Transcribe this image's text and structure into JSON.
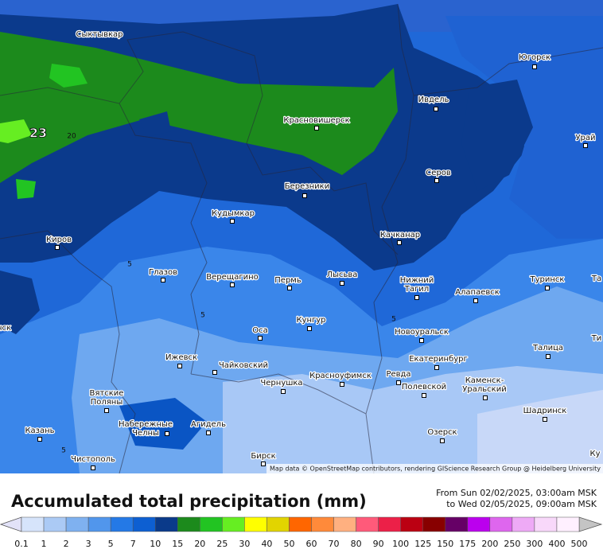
{
  "cities": [
    {
      "lines": [
        "Сыктывкар"
      ]
    },
    {
      "lines": [
        "Югорск"
      ]
    },
    {
      "lines": [
        "Ивдель"
      ]
    },
    {
      "lines": [
        "Красновишерск"
      ]
    },
    {
      "lines": [
        "Урай"
      ]
    },
    {
      "lines": [
        "Серов"
      ]
    },
    {
      "lines": [
        "Березники"
      ]
    },
    {
      "lines": [
        "Кудымкар"
      ]
    },
    {
      "lines": [
        "Качканар"
      ]
    },
    {
      "lines": [
        "Киров"
      ]
    },
    {
      "lines": [
        "Глазов"
      ]
    },
    {
      "lines": [
        "Верещагино"
      ]
    },
    {
      "lines": [
        "Пермь"
      ]
    },
    {
      "lines": [
        "Лысьва"
      ]
    },
    {
      "lines": [
        "Нижний",
        "Тагил"
      ]
    },
    {
      "lines": [
        "Туринск"
      ]
    },
    {
      "lines": [
        "Алапаевск"
      ]
    },
    {
      "lines": [
        "Кунгур"
      ]
    },
    {
      "lines": [
        "Оса"
      ]
    },
    {
      "lines": [
        "Новоуральск"
      ]
    },
    {
      "lines": [
        "Талица"
      ]
    },
    {
      "lines": [
        "Ижевск"
      ]
    },
    {
      "lines": [
        "Екатеринбург"
      ]
    },
    {
      "lines": [
        "Чайковский"
      ]
    },
    {
      "lines": [
        "Ревда"
      ]
    },
    {
      "lines": [
        "Красноуфимск"
      ]
    },
    {
      "lines": [
        "Чернушка"
      ]
    },
    {
      "lines": [
        "Каменск-",
        "Уральский"
      ]
    },
    {
      "lines": [
        "Полевской"
      ]
    },
    {
      "lines": [
        "Вятские",
        "Поляны"
      ]
    },
    {
      "lines": [
        "Набережные",
        "Челны"
      ]
    },
    {
      "lines": [
        "Агидель"
      ]
    },
    {
      "lines": [
        "Шадринск"
      ]
    },
    {
      "lines": [
        "Казань"
      ]
    },
    {
      "lines": [
        "Озерск"
      ]
    },
    {
      "lines": [
        "Чистополь"
      ]
    },
    {
      "lines": [
        "Бирск"
      ]
    },
    {
      "lines": [
        "Та"
      ]
    },
    {
      "lines": [
        "Ти"
      ]
    },
    {
      "lines": [
        "Ку"
      ]
    },
    {
      "lines": [
        "нск"
      ]
    }
  ],
  "contour_labels": [
    23,
    20,
    5,
    5,
    5,
    5
  ],
  "attribution": "Map data © OpenStreetMap contributors, rendering GIScience Research Group @ Heidelberg University",
  "title": "Accumulated total precipitation (mm)",
  "period": [
    "From Sun 02/02/2025, 03:00am MSK",
    "to Wed 02/05/2025, 09:00am MSK"
  ],
  "legend": {
    "ticks": [
      0.1,
      1,
      2,
      3,
      5,
      7,
      10,
      15,
      20,
      25,
      30,
      40,
      50,
      60,
      70,
      80,
      90,
      100,
      125,
      150,
      175,
      200,
      250,
      300,
      400,
      500
    ],
    "colors": [
      "#d6e4fb",
      "#abcaf5",
      "#7fb1f0",
      "#5196ec",
      "#2479e6",
      "#0d5fd2",
      "#0a3a8a",
      "#1c8a1c",
      "#22c422",
      "#66ee22",
      "#ffff00",
      "#e2d400",
      "#ff6600",
      "#ff8a3a",
      "#ffb080",
      "#ff5a7a",
      "#ec2048",
      "#bb0012",
      "#880000",
      "#660066",
      "#bb00ee",
      "#de66ee",
      "#eeaaf6",
      "#f8d8fa",
      "#fff0ff"
    ],
    "under_color": "#e2e2f8",
    "over_color": "#c4c4c4"
  }
}
